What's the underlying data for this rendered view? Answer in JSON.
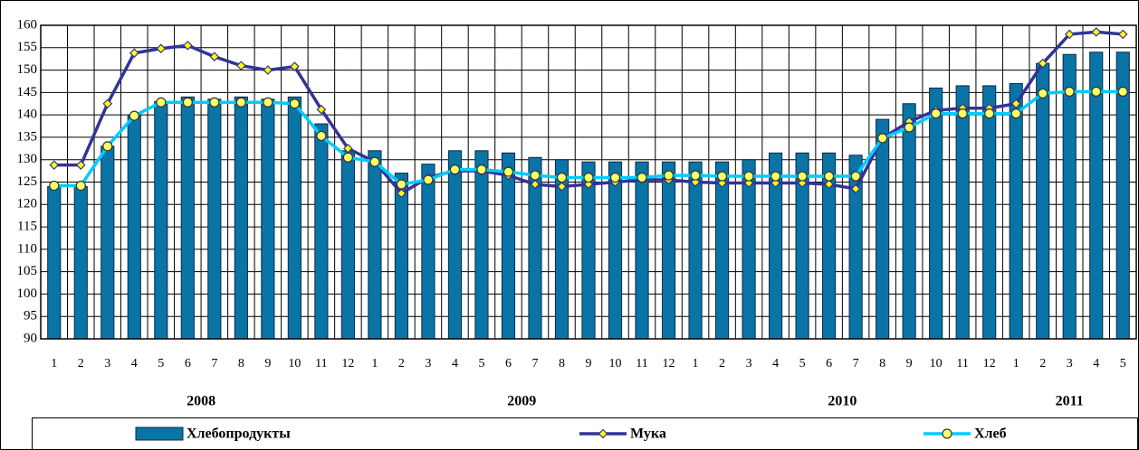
{
  "chart_data": {
    "type": "bar",
    "categories": [
      "1",
      "2",
      "3",
      "4",
      "5",
      "6",
      "7",
      "8",
      "9",
      "10",
      "11",
      "12",
      "1",
      "2",
      "3",
      "4",
      "5",
      "6",
      "7",
      "8",
      "9",
      "10",
      "11",
      "12",
      "1",
      "2",
      "3",
      "4",
      "5",
      "6",
      "7",
      "8",
      "9",
      "10",
      "11",
      "12",
      "1",
      "2",
      "3",
      "4",
      "5"
    ],
    "years": [
      "2008",
      "2009",
      "2010",
      "2011"
    ],
    "series": [
      {
        "name": "Хлебопродукты",
        "type": "bar",
        "color": "#0a74a6",
        "values": [
          124,
          124,
          133,
          140,
          143,
          144,
          143.5,
          144,
          143.5,
          144,
          138,
          132,
          132,
          127,
          129,
          132,
          132,
          131.5,
          130.5,
          130,
          129.5,
          129.5,
          129.5,
          129.5,
          129.5,
          129.5,
          130,
          131.5,
          131.5,
          131.5,
          131,
          139,
          142.5,
          146,
          146.5,
          146.5,
          147,
          151.5,
          153.5,
          154,
          154
        ]
      },
      {
        "name": "Мука",
        "type": "line",
        "color": "#333399",
        "marker": "diamond",
        "marker_color": "#ffff00",
        "values": [
          128.8,
          128.8,
          142.5,
          153.8,
          154.8,
          155.5,
          153,
          151,
          150,
          150.8,
          141.2,
          132.5,
          129.5,
          122.5,
          126,
          127.5,
          127.5,
          126.5,
          124.5,
          124,
          124.5,
          125,
          125.5,
          125.5,
          125,
          124.8,
          124.8,
          124.8,
          124.8,
          124.5,
          123.5,
          134.8,
          138.5,
          141,
          141.5,
          141.5,
          142.5,
          151.5,
          158,
          158.5,
          158
        ]
      },
      {
        "name": "Хлеб",
        "type": "line",
        "color": "#00ccff",
        "marker": "circle",
        "marker_color": "#ffff66",
        "values": [
          124.2,
          124.2,
          133,
          139.8,
          142.8,
          142.8,
          142.8,
          142.8,
          142.8,
          142.5,
          135.3,
          130.5,
          129.5,
          124.5,
          125.5,
          127.8,
          127.8,
          127.3,
          126.5,
          126,
          126,
          126,
          126,
          126.5,
          126.5,
          126.3,
          126.3,
          126.3,
          126.3,
          126.3,
          126.3,
          134.8,
          137.2,
          140.3,
          140.3,
          140.3,
          140.3,
          144.8,
          145.2,
          145.2,
          145.2
        ]
      }
    ],
    "ylim": [
      90,
      160
    ],
    "yticks": [
      90,
      95,
      100,
      105,
      110,
      115,
      120,
      125,
      130,
      135,
      140,
      145,
      150,
      155,
      160
    ],
    "grid": true
  }
}
